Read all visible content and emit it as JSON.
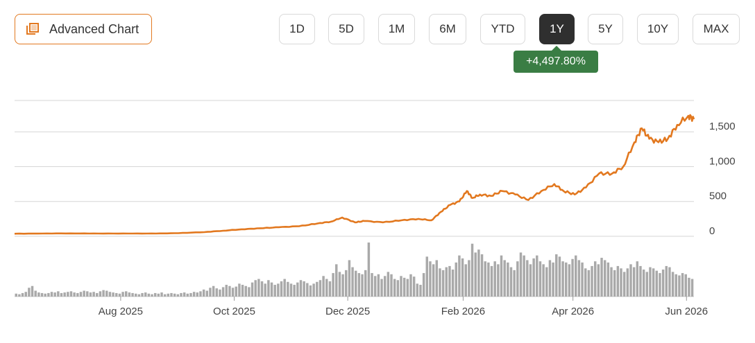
{
  "toolbar": {
    "advanced_label": "Advanced Chart",
    "ranges": [
      "1D",
      "5D",
      "1M",
      "6M",
      "YTD",
      "1Y",
      "5Y",
      "10Y",
      "MAX"
    ],
    "active_range": "1Y"
  },
  "change_badge": "+4,497.80%",
  "colors": {
    "line": "#e2781f",
    "volume": "#a9a9a9",
    "badge": "#3a7d44",
    "active_btn": "#2f2f2f"
  },
  "icons": {
    "advanced": "chart-stack-icon"
  },
  "chart_data": {
    "type": "line",
    "title": "",
    "xlabel": "",
    "ylabel": "",
    "ylim": [
      0,
      1950
    ],
    "y_ticks": [
      "0",
      "500",
      "1,000",
      "1,500"
    ],
    "x_ticks": [
      {
        "label": "Aug 2025",
        "date": "2025-08-01"
      },
      {
        "label": "Oct 2025",
        "date": "2025-10-01"
      },
      {
        "label": "Dec 2025",
        "date": "2025-12-01"
      },
      {
        "label": "Feb 2026",
        "date": "2026-02-01"
      },
      {
        "label": "Apr 2026",
        "date": "2026-04-01"
      },
      {
        "label": "Jun 2026",
        "date": "2026-06-01"
      }
    ],
    "x_range": [
      "2025-06-05",
      "2026-06-05"
    ],
    "grid": true,
    "series": [
      {
        "values": [
          [
            "2025-06-05",
            37
          ],
          [
            "2025-06-20",
            40
          ],
          [
            "2025-07-05",
            42
          ],
          [
            "2025-07-20",
            40
          ],
          [
            "2025-08-05",
            40
          ],
          [
            "2025-08-20",
            40
          ],
          [
            "2025-09-01",
            45
          ],
          [
            "2025-09-15",
            60
          ],
          [
            "2025-09-25",
            80
          ],
          [
            "2025-10-05",
            100
          ],
          [
            "2025-10-15",
            115
          ],
          [
            "2025-10-25",
            130
          ],
          [
            "2025-11-05",
            145
          ],
          [
            "2025-11-15",
            185
          ],
          [
            "2025-11-22",
            210
          ],
          [
            "2025-11-28",
            270
          ],
          [
            "2025-12-05",
            200
          ],
          [
            "2025-12-10",
            220
          ],
          [
            "2025-12-20",
            200
          ],
          [
            "2025-12-30",
            230
          ],
          [
            "2026-01-08",
            250
          ],
          [
            "2026-01-15",
            230
          ],
          [
            "2026-01-20",
            350
          ],
          [
            "2026-01-25",
            450
          ],
          [
            "2026-01-30",
            500
          ],
          [
            "2026-02-03",
            650
          ],
          [
            "2026-02-06",
            550
          ],
          [
            "2026-02-10",
            600
          ],
          [
            "2026-02-16",
            580
          ],
          [
            "2026-02-22",
            650
          ],
          [
            "2026-03-01",
            600
          ],
          [
            "2026-03-08",
            520
          ],
          [
            "2026-03-15",
            650
          ],
          [
            "2026-03-22",
            750
          ],
          [
            "2026-03-27",
            650
          ],
          [
            "2026-04-02",
            600
          ],
          [
            "2026-04-08",
            700
          ],
          [
            "2026-04-15",
            900
          ],
          [
            "2026-04-22",
            900
          ],
          [
            "2026-04-28",
            1000
          ],
          [
            "2026-05-04",
            1350
          ],
          [
            "2026-05-08",
            1550
          ],
          [
            "2026-05-12",
            1400
          ],
          [
            "2026-05-17",
            1350
          ],
          [
            "2026-05-22",
            1400
          ],
          [
            "2026-05-27",
            1600
          ],
          [
            "2026-06-02",
            1730
          ],
          [
            "2026-06-05",
            1680
          ]
        ]
      }
    ],
    "volume": {
      "values": [
        5,
        4,
        6,
        8,
        15,
        18,
        10,
        7,
        6,
        5,
        6,
        8,
        7,
        9,
        6,
        7,
        8,
        9,
        7,
        6,
        8,
        10,
        9,
        7,
        8,
        6,
        9,
        11,
        10,
        8,
        7,
        6,
        5,
        8,
        9,
        7,
        6,
        5,
        4,
        6,
        7,
        5,
        4,
        6,
        5,
        7,
        4,
        5,
        6,
        5,
        4,
        6,
        7,
        5,
        6,
        8,
        7,
        9,
        12,
        10,
        15,
        18,
        14,
        12,
        16,
        20,
        18,
        15,
        17,
        22,
        20,
        18,
        16,
        24,
        28,
        30,
        26,
        22,
        28,
        24,
        20,
        22,
        26,
        30,
        25,
        22,
        20,
        24,
        28,
        26,
        23,
        19,
        22,
        25,
        28,
        35,
        30,
        26,
        40,
        55,
        42,
        38,
        45,
        62,
        50,
        44,
        40,
        38,
        45,
        92,
        40,
        35,
        38,
        30,
        35,
        42,
        38,
        30,
        28,
        35,
        32,
        30,
        38,
        34,
        22,
        20,
        40,
        68,
        60,
        55,
        62,
        48,
        45,
        50,
        52,
        46,
        58,
        70,
        65,
        55,
        62,
        90,
        75,
        80,
        72,
        60,
        58,
        52,
        60,
        55,
        70,
        62,
        58,
        50,
        45,
        60,
        75,
        70,
        62,
        55,
        65,
        70,
        60,
        55,
        50,
        62,
        58,
        72,
        68,
        60,
        58,
        55,
        64,
        70,
        62,
        58,
        48,
        45,
        52,
        60,
        55,
        66,
        62,
        58,
        50,
        45,
        52,
        48,
        42,
        48,
        55,
        50,
        60,
        52,
        46,
        42,
        50,
        48,
        44,
        40,
        46,
        52,
        50,
        42,
        38,
        36,
        40,
        38,
        32,
        30
      ]
    }
  }
}
